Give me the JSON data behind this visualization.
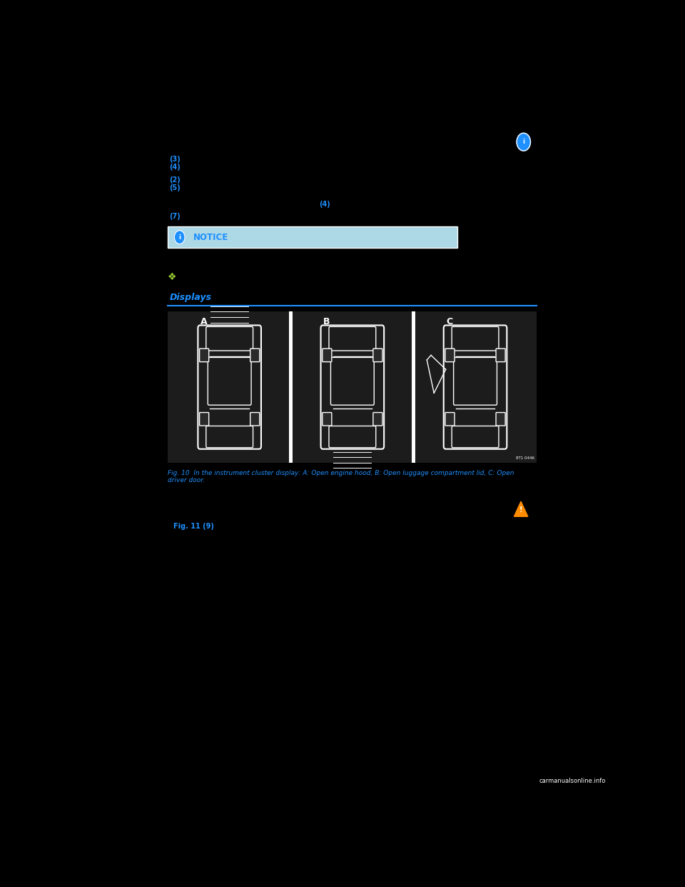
{
  "bg_color": "#000000",
  "text_color": "#ffffff",
  "blue_color": "#1e90ff",
  "notice_bg": "#add8e6",
  "notice_border": "#ffffff",
  "page_width": 9.6,
  "page_height": 12.42,
  "info_icon_color": "#1e90ff",
  "warning_icon_color": "#ff8c00",
  "snowflake_color": "#9acd32",
  "notice_title": "NOTICE",
  "section_title": "Displays",
  "fig_caption": "Fig. 10  In the instrument cluster display: A: Open engine hood, B: Open luggage compartment lid, C: Open\ndriver door.",
  "fig_label": "Fig. 11 (9)",
  "carmanuals_text": "carmanualsonline.info",
  "panel_code": "8T1 0446"
}
